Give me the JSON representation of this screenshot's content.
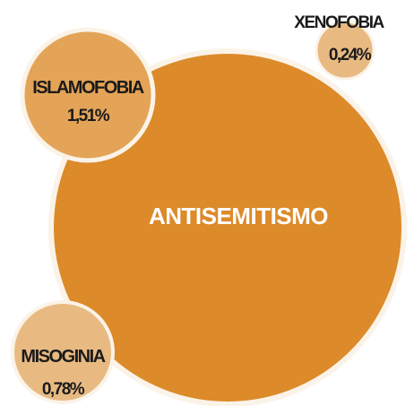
{
  "chart_data": {
    "type": "bubble",
    "bubbles": [
      {
        "id": "antisemitismo",
        "label": "ANTISEMITISMO",
        "value": null,
        "value_label": "",
        "color": "#dc8a2a"
      },
      {
        "id": "islamofobia",
        "label": "ISLAMOFOBIA",
        "value": 1.51,
        "value_label": "1,51%",
        "color": "#e3a457"
      },
      {
        "id": "misoginia",
        "label": "MISOGINIA",
        "value": 0.78,
        "value_label": "0,78%",
        "color": "#e8ba82"
      },
      {
        "id": "xenofobia",
        "label": "XENOFOBIA",
        "value": 0.24,
        "value_label": "0,24%",
        "color": "#e8ba82"
      }
    ],
    "colors": {
      "ring": "#fbf3e8",
      "text_dark": "#1a1a1a",
      "text_light": "#ffffff"
    }
  }
}
